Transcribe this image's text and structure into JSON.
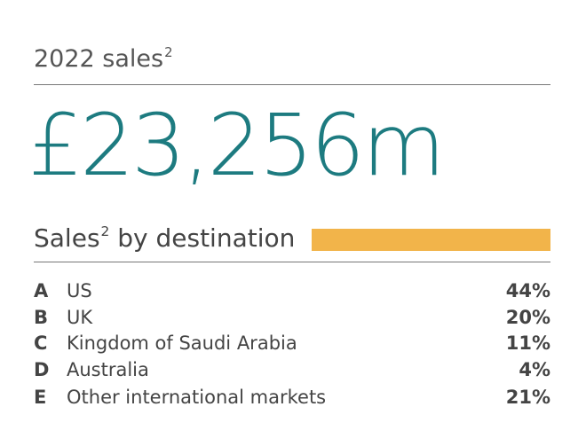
{
  "header": {
    "title": "2022 sales",
    "title_sup": "2",
    "figure": "£23,256m"
  },
  "section": {
    "title": "Sales",
    "title_sup": "2",
    "title_rest": "by destination"
  },
  "table": {
    "rows": [
      [
        "A",
        "US",
        "44%"
      ],
      [
        "B",
        "UK",
        "20%"
      ],
      [
        "C",
        "Kingdom of Saudi Arabia",
        "11%"
      ],
      [
        "D",
        "Australia",
        "4%"
      ],
      [
        "E",
        "Other international markets",
        "21%"
      ]
    ]
  }
}
